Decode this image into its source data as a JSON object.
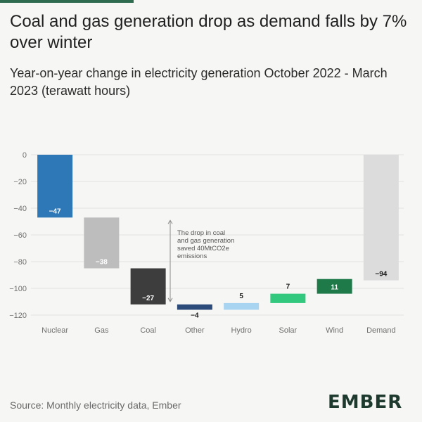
{
  "title": "Coal and gas generation drop as demand falls by 7% over winter",
  "subtitle": "Year-on-year change in electricity generation October 2022 - March 2023 (terawatt hours)",
  "source": "Source: Monthly electricity data, Ember",
  "logo_text": "EMBER",
  "colors": {
    "accent_bar": "#2f6b4f",
    "grid": "#e2e2e0",
    "axis_text": "#707070"
  },
  "chart_data": {
    "type": "bar",
    "subtype": "waterfall",
    "title": "Year-on-year change in electricity generation October 2022 - March 2023 (terawatt hours)",
    "ylabel": "",
    "xlabel": "",
    "ylim": [
      -125,
      5
    ],
    "yticks": [
      0,
      -20,
      -40,
      -60,
      -80,
      -100,
      -120
    ],
    "grid": true,
    "categories": [
      "Nuclear",
      "Gas",
      "Coal",
      "Other",
      "Hydro",
      "Solar",
      "Wind",
      "Demand"
    ],
    "values": [
      -47,
      -38,
      -27,
      -4,
      5,
      7,
      11,
      -94
    ],
    "value_labels": [
      "-47",
      "-38",
      "-27",
      "-4",
      "5",
      "7",
      "11",
      "-94"
    ],
    "bar_colors": [
      "#2f78b7",
      "#bdbdbd",
      "#3d3d3d",
      "#2c4a7a",
      "#a9d4f1",
      "#32c97f",
      "#1f7a4a",
      "#dcdcdc"
    ],
    "label_colors": [
      "#ffffff",
      "#ffffff",
      "#ffffff",
      "#1a1a1a",
      "#1a1a1a",
      "#1a1a1a",
      "#ffffff",
      "#1a1a1a"
    ],
    "label_position": [
      "inside",
      "inside",
      "inside",
      "below",
      "above",
      "above",
      "inside",
      "inside"
    ],
    "annotation": {
      "text_lines": [
        "The drop in coal",
        "and gas generation",
        "saved 40MtCO2e",
        "emissions"
      ],
      "from_value": -47,
      "to_value": -112
    }
  }
}
